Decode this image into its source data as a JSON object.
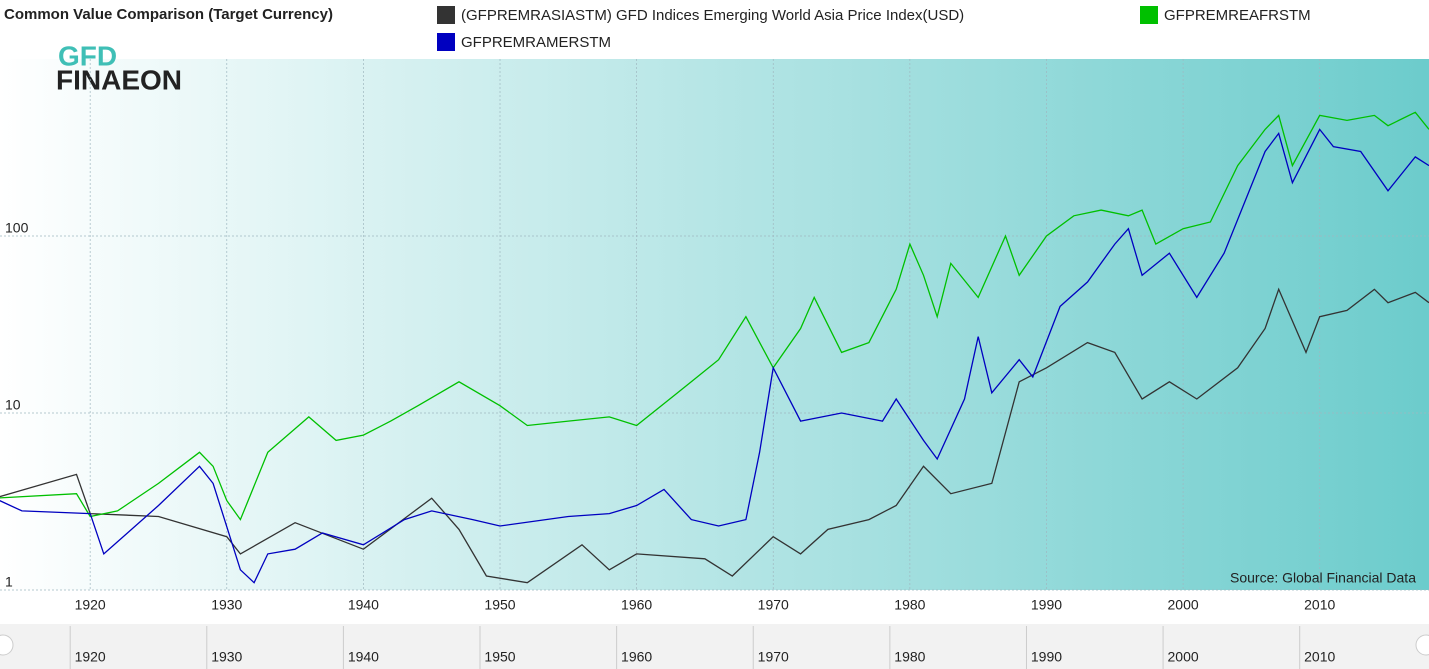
{
  "chart_data": {
    "type": "line",
    "title": "Common Value Comparison (Target Currency)",
    "logo": [
      "GFD",
      "FINAEON"
    ],
    "source": "Source: Global Financial Data",
    "log_y": true,
    "grid": true,
    "legend": "top",
    "xlim": [
      1913.4,
      2018
    ],
    "xticks": [
      1920,
      1930,
      1940,
      1950,
      1960,
      1970,
      1980,
      1990,
      2000,
      2010
    ],
    "ylim": [
      1,
      1000
    ],
    "yticks": [
      1,
      10,
      100
    ],
    "series": [
      {
        "name": "(GFPREMRASIASTM) GFD Indices Emerging World Asia Price Index(USD)",
        "color": "#333333",
        "x": [
          1913,
          1919,
          1920,
          1925,
          1930,
          1931,
          1935,
          1940,
          1945,
          1947,
          1949,
          1952,
          1956,
          1958,
          1960,
          1965,
          1967,
          1970,
          1972,
          1974,
          1977,
          1979,
          1981,
          1983,
          1986,
          1988,
          1990,
          1993,
          1995,
          1997,
          1999,
          2001,
          2004,
          2006,
          2007,
          2009,
          2010,
          2012,
          2014,
          2015,
          2017,
          2018
        ],
        "values": [
          3.3,
          4.5,
          2.7,
          2.6,
          2,
          1.6,
          2.4,
          1.7,
          3.3,
          2.2,
          1.2,
          1.1,
          1.8,
          1.3,
          1.6,
          1.5,
          1.2,
          2,
          1.6,
          2.2,
          2.5,
          3,
          5,
          3.5,
          4,
          15,
          18,
          25,
          22,
          12,
          15,
          12,
          18,
          30,
          50,
          22,
          35,
          38,
          50,
          42,
          48,
          42
        ]
      },
      {
        "name": "GFPREMREAFRSTM",
        "color": "#00c000",
        "x": [
          1913,
          1919,
          1920,
          1922,
          1925,
          1928,
          1929,
          1930,
          1931,
          1933,
          1936,
          1938,
          1940,
          1942,
          1944,
          1947,
          1950,
          1952,
          1955,
          1958,
          1960,
          1963,
          1966,
          1968,
          1970,
          1972,
          1973,
          1975,
          1977,
          1979,
          1980,
          1981,
          1982,
          1983,
          1985,
          1987,
          1988,
          1990,
          1992,
          1994,
          1996,
          1997,
          1998,
          2000,
          2002,
          2004,
          2006,
          2007,
          2008,
          2010,
          2012,
          2014,
          2015,
          2017,
          2018
        ],
        "values": [
          3.3,
          3.5,
          2.6,
          2.8,
          4,
          6,
          5,
          3.2,
          2.5,
          6,
          9.5,
          7,
          7.5,
          9,
          11,
          15,
          11,
          8.5,
          9,
          9.5,
          8.5,
          13,
          20,
          35,
          18,
          30,
          45,
          22,
          25,
          50,
          90,
          60,
          35,
          70,
          45,
          100,
          60,
          100,
          130,
          140,
          130,
          140,
          90,
          110,
          120,
          250,
          400,
          480,
          250,
          480,
          450,
          480,
          420,
          500,
          400
        ]
      },
      {
        "name": "GFPREMRAMERSTM",
        "color": "#0000c0",
        "x": [
          1913,
          1915,
          1920,
          1921,
          1925,
          1928,
          1929,
          1931,
          1932,
          1933,
          1935,
          1937,
          1940,
          1943,
          1945,
          1948,
          1950,
          1955,
          1958,
          1960,
          1962,
          1964,
          1966,
          1968,
          1969,
          1970,
          1972,
          1975,
          1978,
          1979,
          1981,
          1982,
          1984,
          1985,
          1986,
          1988,
          1989,
          1991,
          1993,
          1995,
          1996,
          1997,
          1999,
          2001,
          2003,
          2006,
          2007,
          2008,
          2010,
          2011,
          2013,
          2015,
          2017,
          2018
        ],
        "values": [
          3.3,
          2.8,
          2.7,
          1.6,
          3,
          5,
          4,
          1.3,
          1.1,
          1.6,
          1.7,
          2.1,
          1.8,
          2.5,
          2.8,
          2.5,
          2.3,
          2.6,
          2.7,
          3,
          3.7,
          2.5,
          2.3,
          2.5,
          6,
          18,
          9,
          10,
          9,
          12,
          7,
          5.5,
          12,
          27,
          13,
          20,
          16,
          40,
          55,
          90,
          110,
          60,
          80,
          45,
          80,
          300,
          380,
          200,
          400,
          320,
          300,
          180,
          280,
          250
        ]
      }
    ]
  }
}
